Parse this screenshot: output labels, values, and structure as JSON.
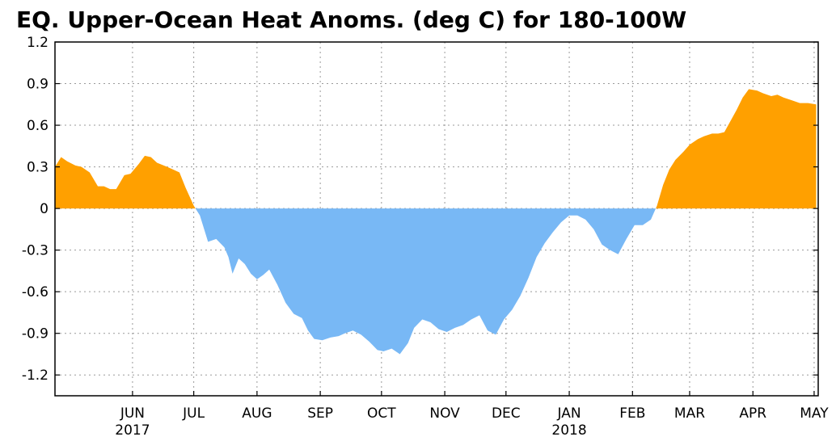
{
  "chart_data": {
    "type": "area",
    "title": "EQ. Upper-Ocean Heat Anoms. (deg C) for 180-100W",
    "ylim": [
      -1.35,
      1.2
    ],
    "yticks": [
      "1.2",
      "0.9",
      "0.6",
      "0.3",
      "0",
      "-0.3",
      "-0.6",
      "-0.9",
      "-1.2"
    ],
    "ytick_values": [
      1.2,
      0.9,
      0.6,
      0.3,
      0,
      -0.3,
      -0.6,
      -0.9,
      -1.2
    ],
    "month_ticks": [
      {
        "label": "JUN",
        "date": "2017-06-15"
      },
      {
        "label": "JUL",
        "date": "2017-07-15"
      },
      {
        "label": "AUG",
        "date": "2017-08-15"
      },
      {
        "label": "SEP",
        "date": "2017-09-15"
      },
      {
        "label": "OCT",
        "date": "2017-10-15"
      },
      {
        "label": "NOV",
        "date": "2017-11-15"
      },
      {
        "label": "DEC",
        "date": "2017-12-15"
      },
      {
        "label": "JAN",
        "date": "2018-01-15"
      },
      {
        "label": "FEB",
        "date": "2018-02-15"
      },
      {
        "label": "MAR",
        "date": "2018-03-15"
      },
      {
        "label": "APR",
        "date": "2018-04-15"
      },
      {
        "label": "MAY",
        "date": "2018-05-15"
      }
    ],
    "year_labels": [
      {
        "label": "2017",
        "date": "2017-06-15"
      },
      {
        "label": "2018",
        "date": "2018-01-15"
      }
    ],
    "xlim": [
      "2017-05-08",
      "2018-05-17"
    ],
    "grid": true,
    "positive_color": "#ffa000",
    "negative_color": "#78b8f5",
    "series": [
      {
        "x": [
          "2017-05-08",
          "2017-05-11",
          "2017-05-14",
          "2017-05-18",
          "2017-05-21",
          "2017-05-25",
          "2017-05-29",
          "2017-06-01",
          "2017-06-04",
          "2017-06-07",
          "2017-06-11",
          "2017-06-14",
          "2017-06-18",
          "2017-06-21",
          "2017-06-24",
          "2017-06-27",
          "2017-07-02",
          "2017-07-05",
          "2017-07-08",
          "2017-07-11",
          "2017-07-15",
          "2017-07-18",
          "2017-07-22",
          "2017-07-26",
          "2017-07-30",
          "2017-08-01",
          "2017-08-03",
          "2017-08-06",
          "2017-08-09",
          "2017-08-12",
          "2017-08-15",
          "2017-08-18",
          "2017-08-21",
          "2017-08-25",
          "2017-08-29",
          "2017-09-02",
          "2017-09-06",
          "2017-09-09",
          "2017-09-12",
          "2017-09-16",
          "2017-09-20",
          "2017-09-24",
          "2017-09-27",
          "2017-10-01",
          "2017-10-05",
          "2017-10-09",
          "2017-10-13",
          "2017-10-16",
          "2017-10-20",
          "2017-10-24",
          "2017-10-28",
          "2017-10-31",
          "2017-11-04",
          "2017-11-08",
          "2017-11-12",
          "2017-11-16",
          "2017-11-20",
          "2017-11-24",
          "2017-11-28",
          "2017-12-02",
          "2017-12-06",
          "2017-12-10",
          "2017-12-14",
          "2017-12-18",
          "2017-12-22",
          "2017-12-26",
          "2017-12-30",
          "2018-01-03",
          "2018-01-07",
          "2018-01-11",
          "2018-01-15",
          "2018-01-19",
          "2018-01-23",
          "2018-01-27",
          "2018-01-31",
          "2018-02-04",
          "2018-02-08",
          "2018-02-12",
          "2018-02-16",
          "2018-02-20",
          "2018-02-24",
          "2018-02-27",
          "2018-03-02",
          "2018-03-05",
          "2018-03-08",
          "2018-03-12",
          "2018-03-15",
          "2018-03-19",
          "2018-03-22",
          "2018-03-26",
          "2018-03-29",
          "2018-04-01",
          "2018-04-04",
          "2018-04-07",
          "2018-04-10",
          "2018-04-13",
          "2018-04-17",
          "2018-04-20",
          "2018-04-24",
          "2018-04-27",
          "2018-04-30",
          "2018-05-04",
          "2018-05-08",
          "2018-05-12",
          "2018-05-16"
        ],
        "values": [
          0.3,
          0.37,
          0.34,
          0.31,
          0.3,
          0.26,
          0.16,
          0.16,
          0.14,
          0.14,
          0.24,
          0.25,
          0.32,
          0.38,
          0.37,
          0.33,
          0.3,
          0.28,
          0.26,
          0.15,
          0.02,
          -0.05,
          -0.24,
          -0.22,
          -0.28,
          -0.35,
          -0.47,
          -0.36,
          -0.4,
          -0.47,
          -0.51,
          -0.48,
          -0.44,
          -0.55,
          -0.68,
          -0.76,
          -0.79,
          -0.88,
          -0.94,
          -0.95,
          -0.93,
          -0.92,
          -0.9,
          -0.88,
          -0.91,
          -0.96,
          -1.02,
          -1.03,
          -1.01,
          -1.05,
          -0.97,
          -0.86,
          -0.8,
          -0.82,
          -0.87,
          -0.89,
          -0.86,
          -0.84,
          -0.8,
          -0.77,
          -0.88,
          -0.91,
          -0.8,
          -0.73,
          -0.63,
          -0.5,
          -0.35,
          -0.25,
          -0.17,
          -0.1,
          -0.05,
          -0.05,
          -0.08,
          -0.15,
          -0.26,
          -0.3,
          -0.33,
          -0.22,
          -0.12,
          -0.12,
          -0.08,
          0.02,
          0.17,
          0.28,
          0.35,
          0.41,
          0.46,
          0.5,
          0.52,
          0.54,
          0.54,
          0.55,
          0.63,
          0.71,
          0.8,
          0.86,
          0.85,
          0.83,
          0.81,
          0.82,
          0.8,
          0.78,
          0.76,
          0.76,
          0.75
        ]
      }
    ]
  }
}
